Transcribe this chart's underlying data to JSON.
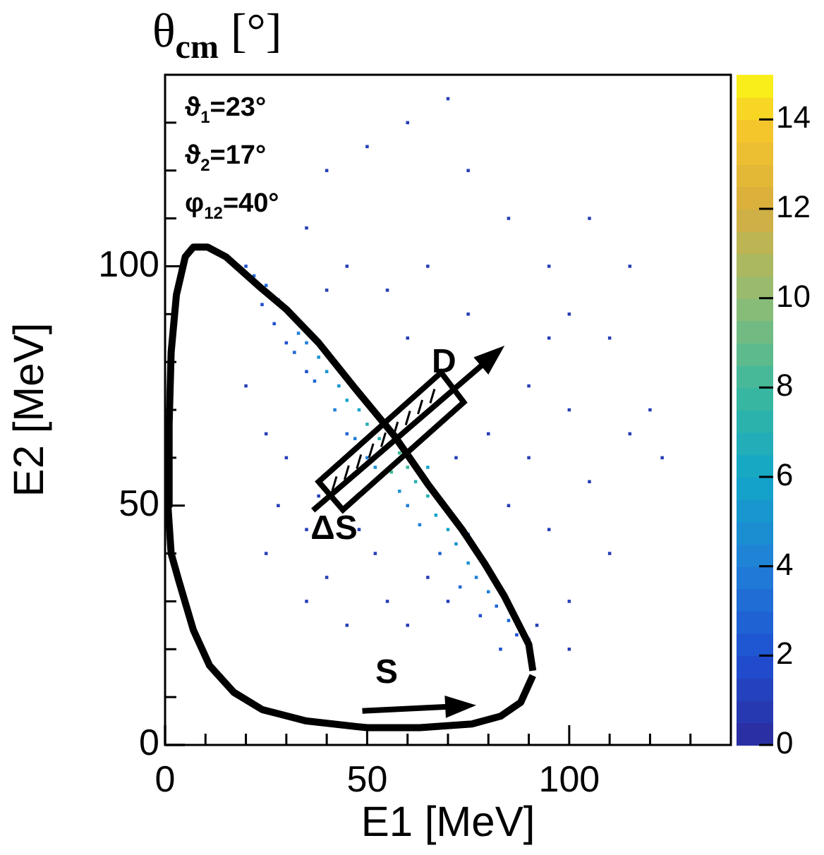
{
  "chart_data": {
    "type": "scatter",
    "title": "θ$_{cm}$ [°]",
    "xlabel": "E1 [MeV]",
    "ylabel": "E2 [MeV]",
    "xlim": [
      0,
      140
    ],
    "ylim": [
      0,
      140
    ],
    "xticks": [
      0,
      {
        "value": 10,
        "label": null
      },
      {
        "value": 20,
        "label": null
      },
      {
        "value": 30,
        "label": null
      },
      {
        "value": 40,
        "label": null
      },
      50,
      {
        "value": 60,
        "label": null
      },
      {
        "value": 70,
        "label": null
      },
      {
        "value": 80,
        "label": null
      },
      {
        "value": 90,
        "label": null
      },
      100,
      {
        "value": 110,
        "label": null
      },
      {
        "value": 120,
        "label": null
      },
      {
        "value": 130,
        "label": null
      }
    ],
    "yticks": [
      0,
      {
        "value": 10,
        "label": null
      },
      {
        "value": 20,
        "label": null
      },
      {
        "value": 30,
        "label": null
      },
      {
        "value": 40,
        "label": null
      },
      50,
      {
        "value": 60,
        "label": null
      },
      {
        "value": 70,
        "label": null
      },
      {
        "value": 80,
        "label": null
      },
      {
        "value": 90,
        "label": null
      },
      100,
      {
        "value": 110,
        "label": null
      },
      {
        "value": 120,
        "label": null
      },
      {
        "value": 130,
        "label": null
      }
    ],
    "clim": [
      0,
      15
    ],
    "cticks": [
      0,
      2,
      4,
      6,
      8,
      10,
      12,
      14
    ],
    "grid": false,
    "legend": false,
    "marker": "square",
    "series": [
      {
        "x": [
          20,
          22,
          25,
          24,
          28,
          27,
          33,
          35,
          32,
          38,
          40,
          37,
          43,
          45,
          42,
          48,
          50,
          47,
          53,
          56,
          58,
          52,
          60,
          62,
          58,
          65,
          67,
          63,
          70,
          72,
          68,
          75,
          77,
          73,
          80,
          82,
          78,
          85,
          87,
          83,
          90,
          92,
          35,
          55,
          45,
          60,
          75,
          85,
          65,
          30,
          50,
          30,
          25,
          35,
          45,
          40,
          55,
          60,
          28,
          38,
          48,
          52,
          65,
          70,
          85,
          90,
          95,
          100,
          105,
          110,
          115,
          120,
          123,
          100,
          95,
          85,
          75,
          60,
          50,
          40,
          35,
          45,
          55,
          65,
          75,
          90,
          110,
          115,
          105,
          70,
          100,
          95,
          60,
          40,
          20,
          25,
          35,
          72,
          80,
          100
        ],
        "values": [
          100,
          98,
          96,
          92,
          93,
          88,
          86,
          84,
          82,
          81,
          78,
          76,
          75,
          72,
          70,
          70,
          67,
          64,
          64,
          57,
          61,
          58,
          58,
          55,
          53,
          52,
          48,
          46,
          45,
          42,
          40,
          38,
          35,
          33,
          32,
          29,
          27,
          26,
          23,
          20,
          22,
          25,
          78,
          68,
          65,
          50,
          44,
          30,
          58,
          84,
          60,
          60,
          40,
          30,
          25,
          35,
          30,
          25,
          50,
          52,
          45,
          40,
          35,
          30,
          50,
          60,
          45,
          70,
          55,
          40,
          65,
          70,
          60,
          90,
          100,
          110,
          120,
          130,
          125,
          120,
          108,
          100,
          95,
          100,
          90,
          75,
          85,
          100,
          110,
          135,
          30,
          85,
          85,
          95,
          75,
          65,
          45,
          60,
          65,
          20
        ],
        "colors": [
          "#1f50d1",
          "#2068d5",
          "#2068d5",
          "#1f50d1",
          "#2068d5",
          "#1f50d1",
          "#207fd8",
          "#207fd8",
          "#2068d5",
          "#1993d0",
          "#1993d0",
          "#2068d5",
          "#1993d0",
          "#12a6c8",
          "#207fd8",
          "#12a6c8",
          "#27afb2",
          "#207fd8",
          "#27afb2",
          "#3db89d",
          "#3db89d",
          "#1993d0",
          "#3db89d",
          "#27afb2",
          "#1993d0",
          "#27afb2",
          "#12a6c8",
          "#207fd8",
          "#12a6c8",
          "#1993d0",
          "#2068d5",
          "#1993d0",
          "#207fd8",
          "#2068d5",
          "#207fd8",
          "#2068d5",
          "#1f50d1",
          "#2068d5",
          "#1f50d1",
          "#1f50d1",
          "#1f50d1",
          "#253eb7",
          "#1f50d1",
          "#207fd8",
          "#2068d5",
          "#207fd8",
          "#2068d5",
          "#1f50d1",
          "#12a6c8",
          "#1f50d1",
          "#207fd8",
          "#253eb7",
          "#253eb7",
          "#253eb7",
          "#253eb7",
          "#253eb7",
          "#253eb7",
          "#253eb7",
          "#253eb7",
          "#253eb7",
          "#253eb7",
          "#253eb7",
          "#253eb7",
          "#253eb7",
          "#253eb7",
          "#253eb7",
          "#253eb7",
          "#253eb7",
          "#253eb7",
          "#253eb7",
          "#253eb7",
          "#253eb7",
          "#253eb7",
          "#253eb7",
          "#253eb7",
          "#253eb7",
          "#253eb7",
          "#253eb7",
          "#253eb7",
          "#253eb7",
          "#253eb7",
          "#253eb7",
          "#253eb7",
          "#253eb7",
          "#253eb7",
          "#253eb7",
          "#253eb7",
          "#253eb7",
          "#253eb7",
          "#253eb7",
          "#253eb7",
          "#253eb7",
          "#253eb7",
          "#253eb7",
          "#253eb7",
          "#253eb7",
          "#253eb7",
          "#253eb7",
          "#253eb7",
          "#253eb7"
        ]
      },
      {
        "type": "line",
        "color": "#000000",
        "marker": "none",
        "x": [
          91,
          88,
          83,
          76,
          63,
          50,
          35,
          24,
          17,
          11,
          7,
          3.5,
          1.5,
          0.7,
          1,
          1.5,
          2.8,
          5,
          7,
          10.5,
          15,
          23,
          30,
          38,
          47,
          56.8,
          65,
          73.5,
          79,
          84,
          87,
          90,
          91
        ],
        "values": [
          14.5,
          8.9,
          6,
          4.4,
          3.6,
          3.6,
          5,
          7.4,
          11,
          16.6,
          24,
          34,
          40,
          50,
          67,
          82,
          94,
          102,
          104,
          104,
          102,
          96,
          91,
          84,
          74.5,
          64.5,
          54.5,
          45,
          38,
          31,
          26,
          21,
          15.5
        ]
      }
    ],
    "annotations": [
      "ϑ$_{1}$=23°",
      "ϑ$_{2}$=17°",
      "φ$_{12}$=40°",
      "D",
      "ΔS",
      "S"
    ]
  }
}
